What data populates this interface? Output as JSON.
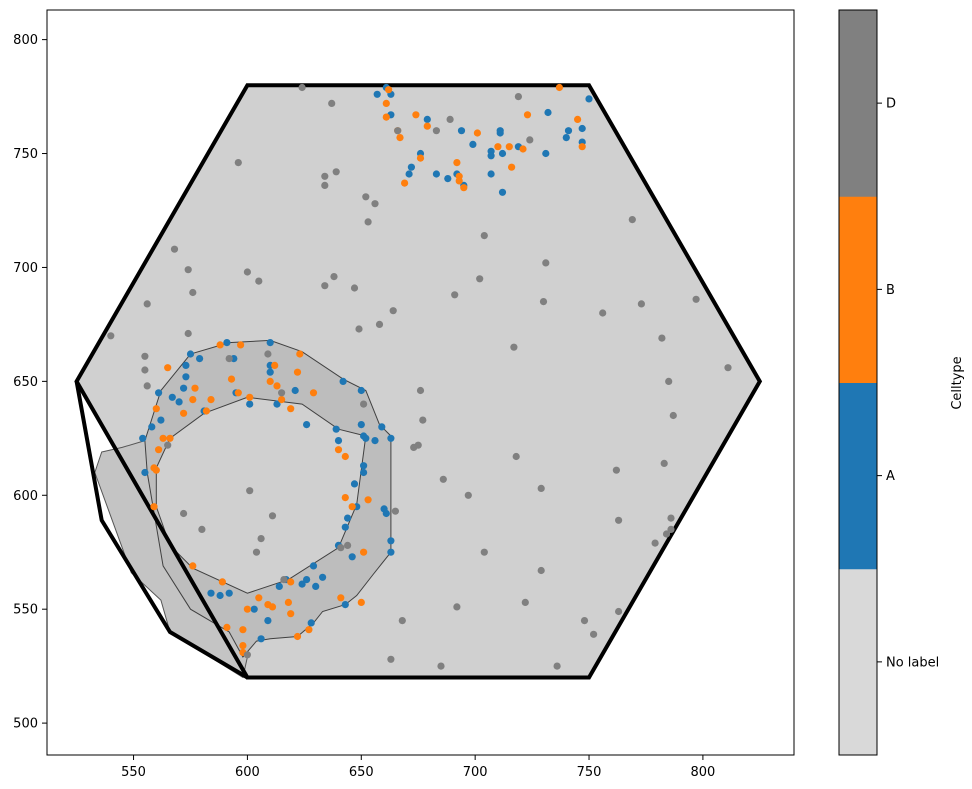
{
  "chart_data": {
    "type": "scatter",
    "title": "",
    "xlabel": "",
    "ylabel": "",
    "xlim": [
      512,
      840
    ],
    "ylim": [
      486,
      813
    ],
    "xticks": [
      550,
      600,
      650,
      700,
      750,
      800
    ],
    "yticks": [
      500,
      550,
      600,
      650,
      700,
      750,
      800
    ],
    "grid": false,
    "colorbar": {
      "label": "Celltype",
      "categories": [
        "No label",
        "A",
        "B",
        "D"
      ],
      "colors": [
        "#d9d9d9",
        "#1f77b4",
        "#ff7f0e",
        "#808080"
      ]
    },
    "hexagon": [
      [
        600,
        780
      ],
      [
        750,
        780
      ],
      [
        825,
        650
      ],
      [
        750,
        520
      ],
      [
        600,
        520
      ],
      [
        525,
        650
      ]
    ],
    "fill_region": [
      [
        600,
        780
      ],
      [
        750,
        780
      ],
      [
        825,
        650
      ],
      [
        750,
        520
      ],
      [
        600,
        520
      ],
      [
        525,
        650
      ],
      [
        600,
        780
      ]
    ],
    "outer_boundary": [
      [
        525,
        650
      ],
      [
        536,
        589
      ],
      [
        566,
        540
      ],
      [
        600,
        520
      ]
    ],
    "ring_outer": [
      [
        555,
        624
      ],
      [
        562,
        646
      ],
      [
        575,
        662
      ],
      [
        592,
        667
      ],
      [
        610,
        668
      ],
      [
        624,
        663
      ],
      [
        642,
        651
      ],
      [
        652,
        646
      ],
      [
        658,
        631
      ],
      [
        663,
        626
      ],
      [
        663,
        580
      ],
      [
        663,
        575
      ],
      [
        655,
        565
      ],
      [
        648,
        556
      ],
      [
        643,
        552
      ],
      [
        633,
        549
      ],
      [
        629,
        544
      ],
      [
        622,
        538
      ],
      [
        610,
        537
      ],
      [
        604,
        536
      ],
      [
        598,
        529
      ],
      [
        592,
        540
      ],
      [
        575,
        550
      ],
      [
        563,
        569
      ],
      [
        556,
        610
      ],
      [
        555,
        624
      ]
    ],
    "ring_inner": [
      [
        560,
        595
      ],
      [
        566,
        578
      ],
      [
        576,
        568
      ],
      [
        600,
        557
      ],
      [
        618,
        563
      ],
      [
        640,
        577
      ],
      [
        648,
        596
      ],
      [
        652,
        626
      ],
      [
        640,
        629
      ],
      [
        624,
        640
      ],
      [
        600,
        643
      ],
      [
        581,
        636
      ],
      [
        566,
        625
      ],
      [
        560,
        612
      ],
      [
        560,
        595
      ]
    ],
    "lower_lobe": [
      [
        536,
        619
      ],
      [
        545,
        621
      ],
      [
        555,
        624
      ],
      [
        563,
        603
      ],
      [
        566,
        578
      ],
      [
        576,
        568
      ],
      [
        598,
        556
      ],
      [
        600,
        529
      ],
      [
        598,
        520
      ],
      [
        566,
        540
      ],
      [
        562,
        554
      ],
      [
        549,
        566
      ],
      [
        533,
        610
      ],
      [
        536,
        619
      ]
    ],
    "series": [
      {
        "name": "A",
        "color": "#1f77b4",
        "points": [
          [
            554,
            625
          ],
          [
            555,
            610
          ],
          [
            558,
            630
          ],
          [
            561,
            645
          ],
          [
            562,
            633
          ],
          [
            567,
            643
          ],
          [
            570,
            641
          ],
          [
            572,
            647
          ],
          [
            573,
            657
          ],
          [
            573,
            652
          ],
          [
            575,
            662
          ],
          [
            579,
            660
          ],
          [
            581,
            637
          ],
          [
            584,
            557
          ],
          [
            588,
            556
          ],
          [
            591,
            667
          ],
          [
            592,
            557
          ],
          [
            594,
            660
          ],
          [
            595,
            645
          ],
          [
            601,
            640
          ],
          [
            603,
            550
          ],
          [
            606,
            537
          ],
          [
            609,
            545
          ],
          [
            610,
            667
          ],
          [
            610,
            657
          ],
          [
            610,
            654
          ],
          [
            613,
            640
          ],
          [
            614,
            560
          ],
          [
            617,
            563
          ],
          [
            621,
            646
          ],
          [
            624,
            561
          ],
          [
            626,
            631
          ],
          [
            626,
            563
          ],
          [
            628,
            544
          ],
          [
            629,
            569
          ],
          [
            630,
            560
          ],
          [
            633,
            564
          ],
          [
            639,
            629
          ],
          [
            640,
            624
          ],
          [
            640,
            578
          ],
          [
            642,
            650
          ],
          [
            643,
            586
          ],
          [
            644,
            590
          ],
          [
            643,
            552
          ],
          [
            646,
            573
          ],
          [
            647,
            605
          ],
          [
            648,
            595
          ],
          [
            650,
            646
          ],
          [
            650,
            631
          ],
          [
            651,
            613
          ],
          [
            651,
            610
          ],
          [
            651,
            626
          ],
          [
            652,
            625
          ],
          [
            656,
            624
          ],
          [
            659,
            630
          ],
          [
            660,
            594
          ],
          [
            661,
            592
          ],
          [
            663,
            625
          ],
          [
            663,
            580
          ],
          [
            663,
            575
          ],
          [
            657,
            776
          ],
          [
            661,
            779
          ],
          [
            663,
            776
          ],
          [
            663,
            767
          ],
          [
            676,
            750
          ],
          [
            672,
            744
          ],
          [
            671,
            741
          ],
          [
            679,
            765
          ],
          [
            683,
            741
          ],
          [
            688,
            739
          ],
          [
            692,
            741
          ],
          [
            695,
            736
          ],
          [
            694,
            760
          ],
          [
            699,
            754
          ],
          [
            707,
            741
          ],
          [
            707,
            751
          ],
          [
            707,
            749
          ],
          [
            711,
            759
          ],
          [
            711,
            760
          ],
          [
            712,
            733
          ],
          [
            712,
            750
          ],
          [
            719,
            753
          ],
          [
            731,
            750
          ],
          [
            732,
            768
          ],
          [
            740,
            757
          ],
          [
            741,
            760
          ],
          [
            747,
            761
          ],
          [
            747,
            755
          ],
          [
            750,
            774
          ]
        ]
      },
      {
        "name": "B",
        "color": "#ff7f0e",
        "points": [
          [
            559,
            595
          ],
          [
            559,
            612
          ],
          [
            560,
            611
          ],
          [
            560,
            638
          ],
          [
            561,
            620
          ],
          [
            563,
            625
          ],
          [
            565,
            656
          ],
          [
            566,
            625
          ],
          [
            572,
            636
          ],
          [
            576,
            569
          ],
          [
            576,
            642
          ],
          [
            577,
            647
          ],
          [
            582,
            637
          ],
          [
            584,
            642
          ],
          [
            588,
            666
          ],
          [
            589,
            562
          ],
          [
            591,
            542
          ],
          [
            593,
            651
          ],
          [
            596,
            645
          ],
          [
            597,
            666
          ],
          [
            598,
            541
          ],
          [
            598,
            534
          ],
          [
            598,
            531
          ],
          [
            600,
            550
          ],
          [
            601,
            643
          ],
          [
            605,
            555
          ],
          [
            609,
            552
          ],
          [
            610,
            650
          ],
          [
            611,
            551
          ],
          [
            612,
            657
          ],
          [
            613,
            648
          ],
          [
            615,
            642
          ],
          [
            618,
            553
          ],
          [
            619,
            548
          ],
          [
            619,
            562
          ],
          [
            619,
            638
          ],
          [
            622,
            538
          ],
          [
            622,
            654
          ],
          [
            623,
            662
          ],
          [
            627,
            541
          ],
          [
            629,
            645
          ],
          [
            640,
            620
          ],
          [
            641,
            555
          ],
          [
            643,
            617
          ],
          [
            643,
            599
          ],
          [
            646,
            595
          ],
          [
            650,
            553
          ],
          [
            651,
            575
          ],
          [
            653,
            598
          ],
          [
            661,
            772
          ],
          [
            661,
            766
          ],
          [
            662,
            778
          ],
          [
            666,
            760
          ],
          [
            667,
            757
          ],
          [
            669,
            737
          ],
          [
            674,
            767
          ],
          [
            676,
            748
          ],
          [
            679,
            762
          ],
          [
            692,
            746
          ],
          [
            693,
            740
          ],
          [
            693,
            738
          ],
          [
            695,
            735
          ],
          [
            701,
            759
          ],
          [
            710,
            753
          ],
          [
            715,
            753
          ],
          [
            716,
            744
          ],
          [
            721,
            752
          ],
          [
            723,
            767
          ],
          [
            737,
            779
          ],
          [
            745,
            765
          ],
          [
            747,
            753
          ]
        ]
      },
      {
        "name": "D",
        "color": "#808080",
        "points": [
          [
            540,
            670
          ],
          [
            555,
            655
          ],
          [
            555,
            661
          ],
          [
            556,
            684
          ],
          [
            556,
            648
          ],
          [
            565,
            622
          ],
          [
            568,
            708
          ],
          [
            572,
            592
          ],
          [
            574,
            699
          ],
          [
            576,
            689
          ],
          [
            574,
            671
          ],
          [
            580,
            585
          ],
          [
            592,
            660
          ],
          [
            596,
            746
          ],
          [
            600,
            530
          ],
          [
            600,
            698
          ],
          [
            601,
            602
          ],
          [
            604,
            575
          ],
          [
            605,
            694
          ],
          [
            606,
            581
          ],
          [
            609,
            662
          ],
          [
            611,
            591
          ],
          [
            615,
            645
          ],
          [
            616,
            563
          ],
          [
            624,
            779
          ],
          [
            634,
            740
          ],
          [
            634,
            692
          ],
          [
            634,
            736
          ],
          [
            637,
            772
          ],
          [
            638,
            696
          ],
          [
            639,
            742
          ],
          [
            641,
            577
          ],
          [
            644,
            578
          ],
          [
            647,
            691
          ],
          [
            649,
            673
          ],
          [
            651,
            640
          ],
          [
            652,
            731
          ],
          [
            653,
            720
          ],
          [
            656,
            728
          ],
          [
            658,
            675
          ],
          [
            663,
            528
          ],
          [
            664,
            681
          ],
          [
            665,
            593
          ],
          [
            666,
            760
          ],
          [
            668,
            545
          ],
          [
            673,
            621
          ],
          [
            676,
            646
          ],
          [
            677,
            633
          ],
          [
            675,
            622
          ],
          [
            683,
            760
          ],
          [
            685,
            525
          ],
          [
            686,
            607
          ],
          [
            689,
            765
          ],
          [
            691,
            688
          ],
          [
            692,
            551
          ],
          [
            697,
            600
          ],
          [
            702,
            695
          ],
          [
            704,
            575
          ],
          [
            704,
            714
          ],
          [
            717,
            665
          ],
          [
            718,
            617
          ],
          [
            719,
            775
          ],
          [
            722,
            553
          ],
          [
            724,
            756
          ],
          [
            729,
            603
          ],
          [
            729,
            567
          ],
          [
            730,
            685
          ],
          [
            731,
            702
          ],
          [
            736,
            525
          ],
          [
            748,
            545
          ],
          [
            752,
            539
          ],
          [
            756,
            680
          ],
          [
            762,
            611
          ],
          [
            763,
            589
          ],
          [
            763,
            549
          ],
          [
            769,
            721
          ],
          [
            773,
            684
          ],
          [
            779,
            579
          ],
          [
            782,
            669
          ],
          [
            783,
            614
          ],
          [
            784,
            583
          ],
          [
            785,
            650
          ],
          [
            786,
            590
          ],
          [
            786,
            585
          ],
          [
            787,
            635
          ],
          [
            797,
            686
          ],
          [
            811,
            656
          ]
        ]
      }
    ]
  }
}
